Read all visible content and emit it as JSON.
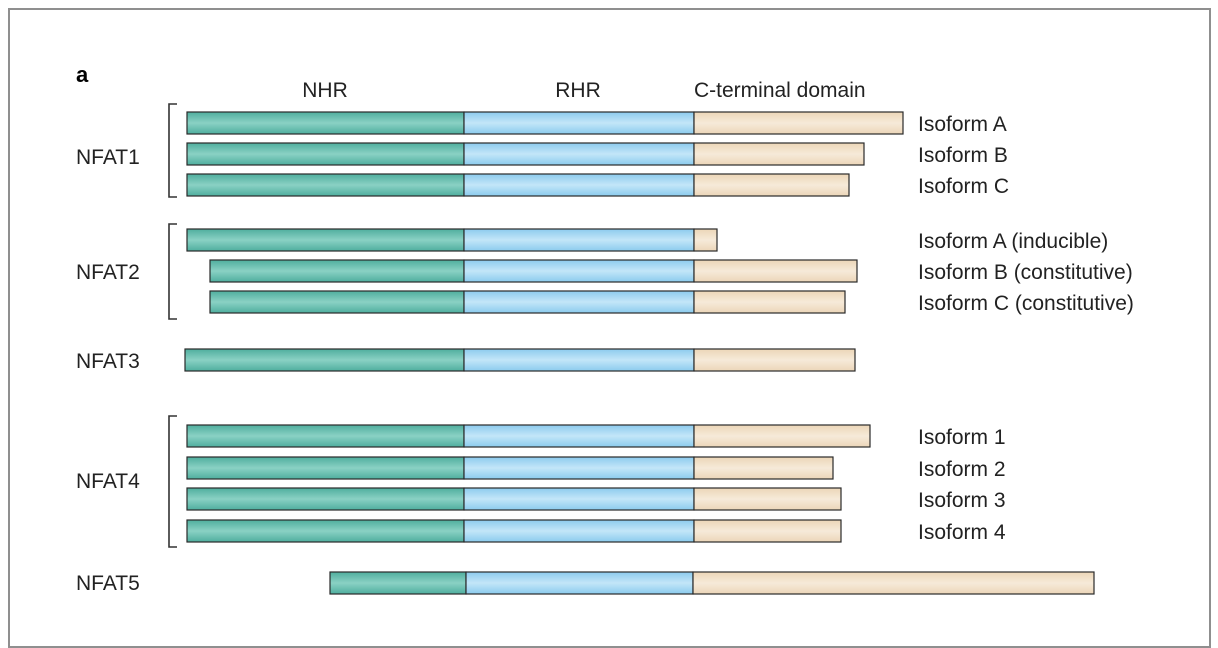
{
  "panel_label": "a",
  "column_headers": {
    "nhr": "NHR",
    "rhr": "RHR",
    "cterm": "C-terminal domain"
  },
  "colors": {
    "nhr": "#4fae9e",
    "rhr": "#8ccbee",
    "cterm": "#ecd6b8",
    "outline": "#2a2a2a",
    "bracket": "#333333",
    "frame": "#8f8f8f"
  },
  "groups": [
    {
      "name": "NFAT1",
      "isoforms": [
        {
          "label": "Isoform A"
        },
        {
          "label": "Isoform B"
        },
        {
          "label": "Isoform C"
        }
      ]
    },
    {
      "name": "NFAT2",
      "isoforms": [
        {
          "label": "Isoform A (inducible)"
        },
        {
          "label": "Isoform B (constitutive)"
        },
        {
          "label": "Isoform C (constitutive)"
        }
      ]
    },
    {
      "name": "NFAT3",
      "isoforms": [
        {
          "label": ""
        }
      ]
    },
    {
      "name": "NFAT4",
      "isoforms": [
        {
          "label": "Isoform 1"
        },
        {
          "label": "Isoform 2"
        },
        {
          "label": "Isoform 3"
        },
        {
          "label": "Isoform 4"
        }
      ]
    },
    {
      "name": "NFAT5",
      "isoforms": [
        {
          "label": ""
        }
      ]
    }
  ]
}
